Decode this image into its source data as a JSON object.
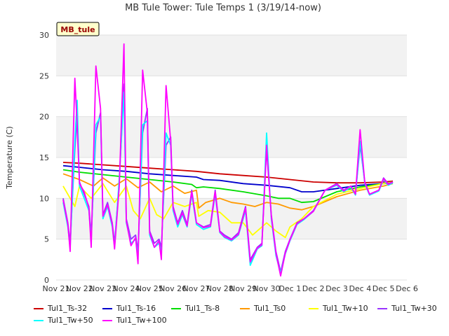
{
  "chart_data": {
    "type": "line",
    "title": "MB Tule Tower: Tule Temps 1 (3/19/14-now)",
    "ylabel": "Temperature (C)",
    "xlabel": "",
    "ylim": [
      0,
      30
    ],
    "yticks": [
      0,
      5,
      10,
      15,
      20,
      25,
      30
    ],
    "xlim": [
      0,
      15
    ],
    "xticks": [
      {
        "value": 0,
        "label": "Nov 21"
      },
      {
        "value": 1,
        "label": "Nov 22"
      },
      {
        "value": 2,
        "label": "Nov 23"
      },
      {
        "value": 3,
        "label": "Nov 24"
      },
      {
        "value": 4,
        "label": "Nov 25"
      },
      {
        "value": 5,
        "label": "Nov 26"
      },
      {
        "value": 6,
        "label": "Nov 27"
      },
      {
        "value": 7,
        "label": "Nov 28"
      },
      {
        "value": 8,
        "label": "Nov 29"
      },
      {
        "value": 9,
        "label": "Nov 30"
      },
      {
        "value": 10,
        "label": "Dec 1"
      },
      {
        "value": 11,
        "label": "Dec 2"
      },
      {
        "value": 12,
        "label": "Dec 3"
      },
      {
        "value": 13,
        "label": "Dec 4"
      },
      {
        "value": 14,
        "label": "Dec 5"
      },
      {
        "value": 15,
        "label": "Dec 6"
      }
    ],
    "annotation": "MB_tule",
    "series": [
      {
        "name": "Tul1_Ts-32",
        "color": "#cc0000",
        "x": [
          0.3,
          1,
          2,
          3,
          4,
          5,
          6,
          7,
          8,
          9,
          10,
          11,
          12,
          13,
          14,
          14.4
        ],
        "y": [
          14.4,
          14.3,
          14.1,
          13.9,
          13.7,
          13.5,
          13.3,
          13.0,
          12.8,
          12.6,
          12.3,
          12.0,
          11.9,
          11.9,
          12.0,
          12.1
        ]
      },
      {
        "name": "Tul1_Ts-16",
        "color": "#0000cc",
        "x": [
          0.3,
          1,
          2,
          3,
          4,
          5,
          6,
          6.3,
          7,
          8,
          9,
          10,
          10.5,
          11,
          12,
          13,
          14,
          14.4
        ],
        "y": [
          14.0,
          13.8,
          13.5,
          13.3,
          13.0,
          12.8,
          12.6,
          12.3,
          12.2,
          11.8,
          11.6,
          11.3,
          10.8,
          10.8,
          11.2,
          11.6,
          11.8,
          11.9
        ]
      },
      {
        "name": "Tul1_Ts-8",
        "color": "#00dd00",
        "x": [
          0.3,
          1,
          2,
          3,
          4,
          5,
          5.8,
          6,
          6.3,
          7,
          8,
          9,
          9.5,
          10,
          10.5,
          11,
          12,
          13,
          14,
          14.4
        ],
        "y": [
          13.5,
          13.2,
          12.9,
          12.6,
          12.3,
          12.0,
          11.7,
          11.3,
          11.4,
          11.2,
          10.8,
          10.3,
          10.0,
          10.0,
          9.5,
          9.6,
          10.8,
          11.4,
          11.8,
          12.0
        ]
      },
      {
        "name": "Tul1_Ts0",
        "color": "#ff9900",
        "x": [
          0.3,
          1,
          1.6,
          2,
          2.5,
          3,
          3.5,
          4,
          4.5,
          5,
          5.5,
          6,
          6.1,
          6.4,
          7,
          7.5,
          8,
          8.5,
          9,
          9.5,
          10,
          10.5,
          11,
          12,
          13,
          14,
          14.4
        ],
        "y": [
          13.0,
          12.3,
          11.5,
          12.5,
          11.5,
          12.4,
          11.3,
          12.0,
          10.8,
          11.5,
          10.6,
          11.0,
          8.8,
          9.5,
          10.0,
          9.5,
          9.3,
          9.0,
          9.5,
          9.3,
          8.8,
          8.6,
          9.0,
          10.2,
          11.0,
          11.5,
          11.8
        ]
      },
      {
        "name": "Tul1_Tw+10",
        "color": "#ffff00",
        "x": [
          0.3,
          0.8,
          1,
          1.5,
          2,
          2.5,
          3,
          3.3,
          3.6,
          4,
          4.3,
          4.6,
          5,
          5.5,
          6,
          6.1,
          6.5,
          7,
          7.5,
          8,
          8.4,
          8.8,
          9,
          9.4,
          9.8,
          10,
          10.5,
          11,
          12,
          13,
          14,
          14.4
        ],
        "y": [
          11.5,
          9.0,
          11.5,
          10.0,
          11.8,
          9.5,
          11.5,
          8.5,
          7.5,
          10.0,
          8.0,
          7.5,
          9.5,
          9.0,
          9.5,
          7.8,
          8.5,
          8.3,
          7.0,
          7.0,
          5.5,
          6.5,
          7.0,
          6.0,
          5.2,
          6.5,
          7.5,
          9.0,
          10.5,
          11.2,
          11.8,
          12.0
        ]
      },
      {
        "name": "Tul1_Tw+30",
        "color": "#9933ff",
        "x": [
          0.3,
          0.5,
          0.6,
          0.8,
          0.9,
          1.0,
          1.2,
          1.4,
          1.5,
          1.7,
          1.9,
          2.0,
          2.2,
          2.4,
          2.5,
          2.7,
          2.9,
          3.0,
          3.2,
          3.4,
          3.5,
          3.7,
          3.9,
          4.0,
          4.2,
          4.4,
          4.5,
          4.7,
          4.9,
          5.0,
          5.2,
          5.4,
          5.6,
          5.8,
          6.0,
          6.3,
          6.6,
          6.8,
          7.0,
          7.2,
          7.5,
          7.8,
          8.1,
          8.3,
          8.6,
          8.8,
          9.0,
          9.2,
          9.4,
          9.6,
          9.8,
          10.0,
          10.3,
          10.6,
          11.0,
          11.5,
          12.0,
          12.3,
          12.6,
          12.8,
          13.0,
          13.2,
          13.4,
          13.8,
          14.0,
          14.2,
          14.4
        ],
        "y": [
          10.0,
          7.0,
          4.5,
          16.0,
          20.0,
          12.0,
          10.5,
          9.0,
          5.5,
          18.0,
          20.5,
          8.0,
          9.5,
          7.0,
          4.5,
          12.0,
          24.0,
          7.5,
          5.0,
          5.5,
          3.5,
          18.0,
          21.0,
          6.0,
          4.5,
          5.0,
          4.0,
          16.5,
          17.5,
          9.0,
          7.0,
          8.5,
          6.8,
          11.0,
          7.0,
          6.5,
          6.8,
          11.0,
          6.0,
          5.5,
          5.0,
          5.8,
          9.0,
          2.5,
          4.0,
          4.5,
          16.0,
          8.0,
          3.5,
          1.0,
          3.5,
          5.0,
          7.0,
          7.5,
          8.5,
          11.0,
          11.8,
          11.0,
          11.5,
          10.5,
          16.5,
          12.0,
          10.5,
          11.0,
          12.5,
          11.8,
          12.0
        ]
      },
      {
        "name": "Tul1_Tw+50",
        "color": "#00ffff",
        "x": [
          0.3,
          0.5,
          0.6,
          0.8,
          0.9,
          1.0,
          1.2,
          1.4,
          1.5,
          1.7,
          1.9,
          2.0,
          2.2,
          2.4,
          2.5,
          2.7,
          2.9,
          3.0,
          3.2,
          3.4,
          3.5,
          3.7,
          3.9,
          4.0,
          4.2,
          4.4,
          4.5,
          4.7,
          4.9,
          5.0,
          5.2,
          5.4,
          5.6,
          5.8,
          6.0,
          6.3,
          6.6,
          6.8,
          7.0,
          7.2,
          7.5,
          7.8,
          8.1,
          8.3,
          8.6,
          8.8,
          9.0,
          9.2,
          9.4,
          9.6,
          9.8,
          10.0,
          10.3,
          10.6,
          11.0,
          11.5,
          12.0,
          12.3,
          12.6,
          12.8,
          13.0,
          13.2,
          13.4,
          13.8,
          14.0,
          14.2,
          14.4
        ],
        "y": [
          9.5,
          6.5,
          4.0,
          17.0,
          22.0,
          11.5,
          10.0,
          8.5,
          5.0,
          19.0,
          20.0,
          7.5,
          9.0,
          6.5,
          4.0,
          12.5,
          23.0,
          7.0,
          4.5,
          5.0,
          3.0,
          19.0,
          19.5,
          5.5,
          4.0,
          4.5,
          3.5,
          18.0,
          16.5,
          8.5,
          6.5,
          8.0,
          6.5,
          10.5,
          6.8,
          6.2,
          6.5,
          10.5,
          5.8,
          5.2,
          4.8,
          5.5,
          8.5,
          1.8,
          3.8,
          4.2,
          18.0,
          7.5,
          3.0,
          0.8,
          3.2,
          4.8,
          6.8,
          7.4,
          8.4,
          11.0,
          11.6,
          10.8,
          11.4,
          10.4,
          17.0,
          11.8,
          10.4,
          10.9,
          12.3,
          11.6,
          11.9
        ]
      },
      {
        "name": "Tul1_Tw+100",
        "color": "#ff00ff",
        "x": [
          0.3,
          0.5,
          0.6,
          0.8,
          0.9,
          1.0,
          1.2,
          1.4,
          1.5,
          1.7,
          1.9,
          2.0,
          2.2,
          2.4,
          2.5,
          2.7,
          2.9,
          3.0,
          3.2,
          3.4,
          3.5,
          3.7,
          3.9,
          4.0,
          4.2,
          4.4,
          4.5,
          4.7,
          4.9,
          5.0,
          5.2,
          5.4,
          5.6,
          5.8,
          6.0,
          6.3,
          6.6,
          6.8,
          7.0,
          7.2,
          7.5,
          7.8,
          8.1,
          8.3,
          8.6,
          8.8,
          9.0,
          9.2,
          9.4,
          9.6,
          9.8,
          10.0,
          10.3,
          10.6,
          11.0,
          11.5,
          12.0,
          12.3,
          12.6,
          12.8,
          13.0,
          13.2,
          13.4,
          13.8,
          14.0,
          14.2,
          14.4
        ],
        "y": [
          9.8,
          6.8,
          3.5,
          24.7,
          19.0,
          11.8,
          10.8,
          8.8,
          4.0,
          26.2,
          21.0,
          7.8,
          9.2,
          6.8,
          3.8,
          11.5,
          28.9,
          7.2,
          4.2,
          5.2,
          2.0,
          25.7,
          20.5,
          5.8,
          4.0,
          4.8,
          2.5,
          23.8,
          17.0,
          8.8,
          6.8,
          8.2,
          6.6,
          10.8,
          7.0,
          6.4,
          6.6,
          10.8,
          5.9,
          5.3,
          4.9,
          5.6,
          8.8,
          2.2,
          3.9,
          4.3,
          16.5,
          7.8,
          3.3,
          0.5,
          3.3,
          4.9,
          6.9,
          7.5,
          8.4,
          11.0,
          11.7,
          10.9,
          11.5,
          10.5,
          18.4,
          11.9,
          10.5,
          11.0,
          12.4,
          11.7,
          12.0
        ]
      }
    ]
  }
}
